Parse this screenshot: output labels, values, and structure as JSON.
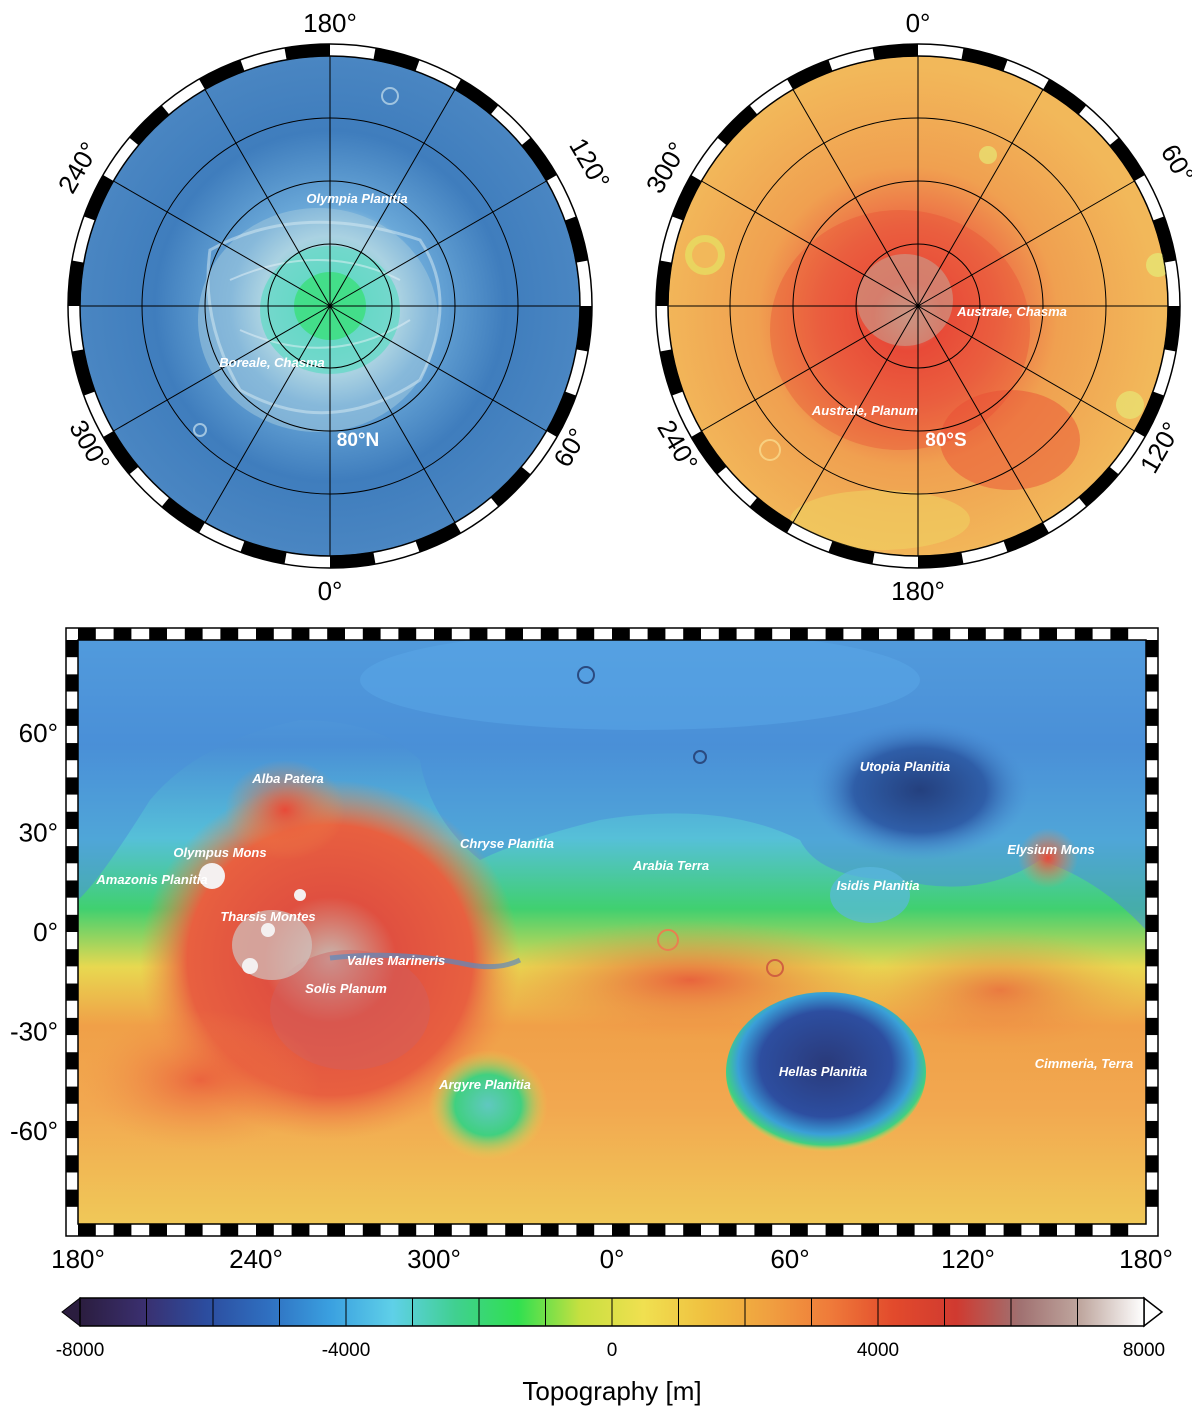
{
  "north_map": {
    "lon_labels": {
      "top": "180°",
      "upper_left": "240°",
      "upper_right": "120°",
      "lower_left": "300°",
      "lower_right": "60°",
      "bottom": "0°"
    },
    "lat_label": "80°N",
    "features": [
      {
        "name": "Olympia Planitia"
      },
      {
        "name": "Boreale, Chasma"
      }
    ],
    "palette": [
      "#2a5fa0",
      "#3f7dbd",
      "#5a9ad0",
      "#7fc0d8",
      "#5fe0b0",
      "#3be07a"
    ]
  },
  "south_map": {
    "lon_labels": {
      "top": "0°",
      "upper_left": "300°",
      "upper_right": "60°",
      "lower_left": "240°",
      "lower_right": "120°",
      "bottom": "180°"
    },
    "lat_label": "80°S",
    "features": [
      {
        "name": "Australe, Chasma"
      },
      {
        "name": "Australe, Planum"
      }
    ],
    "palette": [
      "#f0b050",
      "#f29f45",
      "#ef7a3a",
      "#e84a2e",
      "#d33a2a",
      "#e6e070"
    ]
  },
  "global_map": {
    "lon_ticks": [
      "180°",
      "240°",
      "300°",
      "0°",
      "60°",
      "120°",
      "180°"
    ],
    "lat_ticks": [
      "60°",
      "30°",
      "0°",
      "-30°",
      "-60°"
    ],
    "features": [
      {
        "name": "Alba Patera"
      },
      {
        "name": "Olympus Mons"
      },
      {
        "name": "Amazonis Planitia"
      },
      {
        "name": "Tharsis Montes"
      },
      {
        "name": "Valles Marineris"
      },
      {
        "name": "Solis Planum"
      },
      {
        "name": "Chryse Planitia"
      },
      {
        "name": "Arabia Terra"
      },
      {
        "name": "Utopia Planitia"
      },
      {
        "name": "Isidis Planitia"
      },
      {
        "name": "Elysium Mons"
      },
      {
        "name": "Argyre Planitia"
      },
      {
        "name": "Hellas Planitia"
      },
      {
        "name": "Cimmeria, Terra"
      }
    ]
  },
  "colorbar": {
    "title": "Topography [m]",
    "tick_labels": [
      "-8000",
      "-4000",
      "0",
      "4000",
      "8000"
    ],
    "range": [
      -8000,
      8000
    ],
    "step": 1000,
    "stops": [
      "#2b1d3f",
      "#3a2f6e",
      "#2c4c9e",
      "#2f6fc0",
      "#3aa0e0",
      "#5fd0e8",
      "#40d090",
      "#30e050",
      "#c8e040",
      "#f0e050",
      "#f0c040",
      "#f0a040",
      "#ef7a3a",
      "#e24a2c",
      "#d03a30",
      "#a07070",
      "#c0a8a0",
      "#ffffff"
    ]
  }
}
